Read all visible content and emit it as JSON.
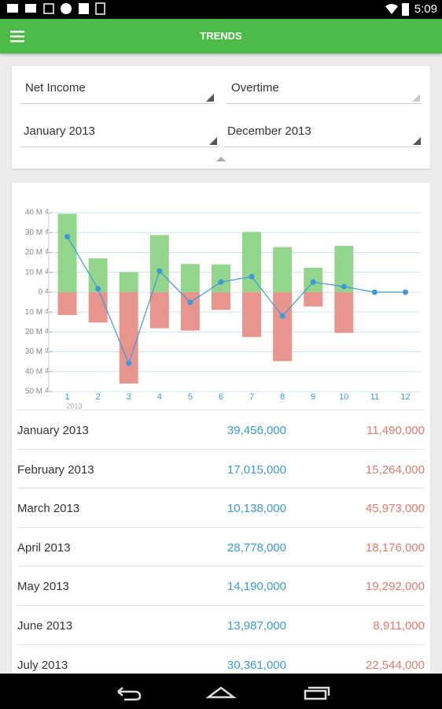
{
  "status_bar": {
    "time": "5:09"
  },
  "app_bar": {
    "title": "TRENDS"
  },
  "filters": {
    "metric": "Net Income",
    "mode": "Overtime",
    "from": "January 2013",
    "to": "December 2013"
  },
  "chart_data": {
    "type": "bar",
    "categories": [
      "1",
      "2",
      "3",
      "4",
      "5",
      "6",
      "7",
      "8",
      "9",
      "10",
      "11",
      "12"
    ],
    "x_sublabel": "2013",
    "series": [
      {
        "type": "bar",
        "color": "#93d68b",
        "values": [
          39456000,
          17015000,
          10138000,
          28778000,
          14190000,
          13987000,
          30361000,
          22700000,
          12300000,
          23300000,
          0,
          0
        ]
      },
      {
        "type": "bar",
        "color": "#e8968d",
        "values": [
          -11490000,
          -15264000,
          -45973000,
          -18176000,
          -19292000,
          -8911000,
          -22544000,
          -34700000,
          -7200000,
          -20500000,
          0,
          0
        ]
      },
      {
        "type": "line",
        "color": "#3a9ad9",
        "values": [
          27966000,
          1751000,
          -35835000,
          10602000,
          -5102000,
          5076000,
          7817000,
          -12000000,
          5100000,
          2800000,
          0,
          0
        ]
      }
    ],
    "ylim": [
      -50000000,
      40000000
    ],
    "yticks": [
      {
        "value": 40000000,
        "label": "40 M ₫"
      },
      {
        "value": 30000000,
        "label": "30 M ₫"
      },
      {
        "value": 20000000,
        "label": "20 M ₫"
      },
      {
        "value": 10000000,
        "label": "10 M ₫"
      },
      {
        "value": 0,
        "label": "0 ₫"
      },
      {
        "value": -10000000,
        "label": "10 M ₫"
      },
      {
        "value": -20000000,
        "label": "20 M ₫"
      },
      {
        "value": -30000000,
        "label": "30 M ₫"
      },
      {
        "value": -40000000,
        "label": "40 M ₫"
      },
      {
        "value": -50000000,
        "label": "50 M ₫"
      }
    ],
    "grid": true
  },
  "table": {
    "rows": [
      [
        "January 2013",
        "39,456,000",
        "11,490,000"
      ],
      [
        "February 2013",
        "17,015,000",
        "15,264,000"
      ],
      [
        "March 2013",
        "10,138,000",
        "45,973,000"
      ],
      [
        "April 2013",
        "28,778,000",
        "18,176,000"
      ],
      [
        "May 2013",
        "14,190,000",
        "19,292,000"
      ],
      [
        "June 2013",
        "13,987,000",
        "8,911,000"
      ],
      [
        "July 2013",
        "30,361,000",
        "22,544,000"
      ]
    ]
  }
}
